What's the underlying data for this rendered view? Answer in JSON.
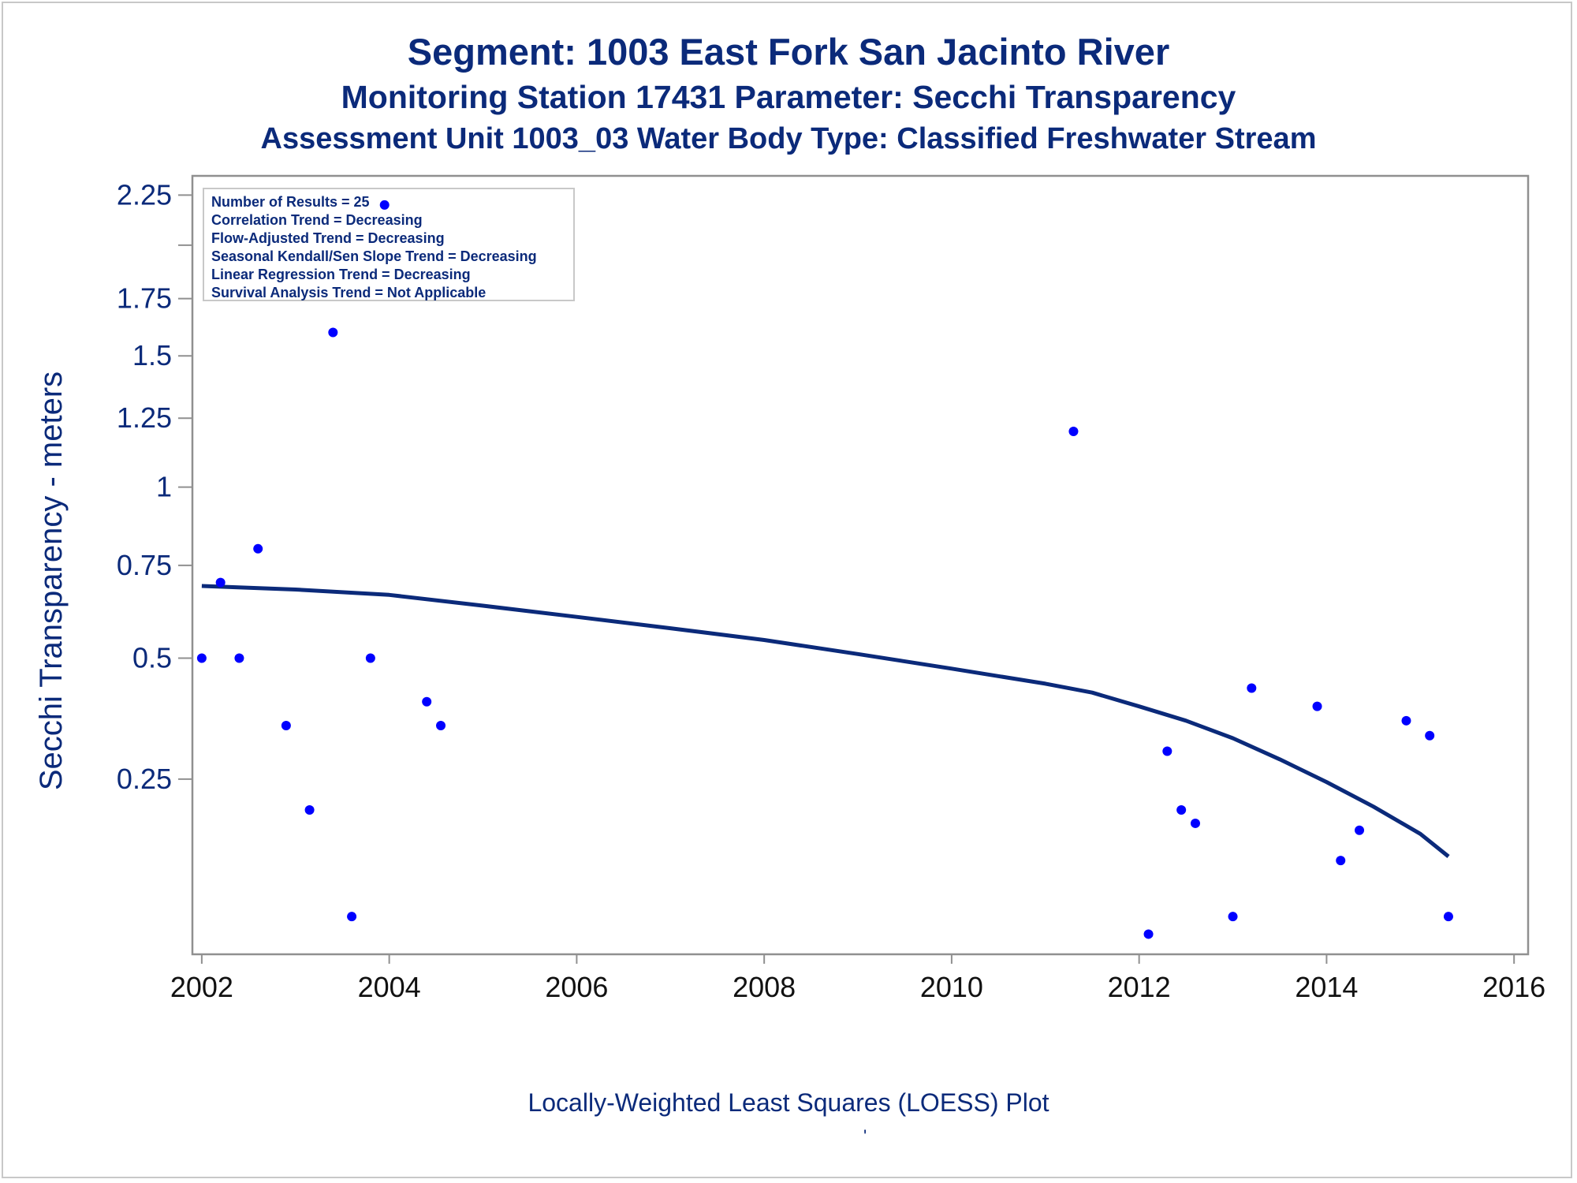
{
  "titles": {
    "line1": "Segment: 1003  East Fork San Jacinto River",
    "line2": "Monitoring Station 17431 Parameter: Secchi Transparency",
    "line3": "Assessment Unit 1003_03   Water Body Type: Classified Freshwater Stream"
  },
  "footnote": "Locally-Weighted Least Squares (LOESS) Plot",
  "footnote_mark": "'",
  "legend": {
    "lines": [
      "Number of Results = 25",
      "Correlation Trend = Decreasing",
      "Flow-Adjusted Trend = Decreasing",
      "Seasonal Kendall/Sen Slope Trend = Decreasing",
      "Linear Regression Trend = Decreasing",
      "Survival Analysis Trend = Not Applicable"
    ]
  },
  "colors": {
    "text": "#0b2a7a",
    "points": "#0000ff",
    "loess": "#0b2a7a",
    "axis": "#909090"
  },
  "chart_data": {
    "type": "scatter",
    "xlabel": "",
    "ylabel": "Secchi Transparency - meters",
    "x_ticks": [
      2002,
      2004,
      2006,
      2008,
      2010,
      2012,
      2014,
      2016
    ],
    "y_ticks": [
      0.25,
      0.5,
      0.75,
      1,
      1.25,
      1.5,
      1.75,
      2.25
    ],
    "y_tick_labels": [
      "0.25",
      "0.5",
      "0.75",
      "1",
      "1.25",
      "1.5",
      "1.75",
      "2.25"
    ],
    "y_scale": "sqrt",
    "xlim": [
      2001.9,
      2016.15
    ],
    "ylim": [
      0.04,
      2.35
    ],
    "grid": false,
    "legend_position": "top-left",
    "points": [
      {
        "x": 2002.0,
        "y": 0.5
      },
      {
        "x": 2002.2,
        "y": 0.7
      },
      {
        "x": 2002.4,
        "y": 0.5
      },
      {
        "x": 2002.6,
        "y": 0.8
      },
      {
        "x": 2002.9,
        "y": 0.35
      },
      {
        "x": 2003.15,
        "y": 0.2
      },
      {
        "x": 2003.4,
        "y": 1.6
      },
      {
        "x": 2003.6,
        "y": 0.07
      },
      {
        "x": 2003.8,
        "y": 0.5
      },
      {
        "x": 2003.95,
        "y": 2.2
      },
      {
        "x": 2004.4,
        "y": 0.4
      },
      {
        "x": 2004.55,
        "y": 0.35
      },
      {
        "x": 2011.3,
        "y": 1.2
      },
      {
        "x": 2012.1,
        "y": 0.055
      },
      {
        "x": 2012.3,
        "y": 0.3
      },
      {
        "x": 2012.45,
        "y": 0.2
      },
      {
        "x": 2012.6,
        "y": 0.18
      },
      {
        "x": 2013.0,
        "y": 0.07
      },
      {
        "x": 2013.2,
        "y": 0.43
      },
      {
        "x": 2013.9,
        "y": 0.39
      },
      {
        "x": 2014.15,
        "y": 0.13
      },
      {
        "x": 2014.35,
        "y": 0.17
      },
      {
        "x": 2014.85,
        "y": 0.36
      },
      {
        "x": 2015.1,
        "y": 0.33
      },
      {
        "x": 2015.3,
        "y": 0.07
      }
    ],
    "loess": {
      "x": [
        2002.0,
        2003.0,
        2004.0,
        2005.0,
        2006.0,
        2007.0,
        2008.0,
        2009.0,
        2010.0,
        2011.0,
        2011.5,
        2012.0,
        2012.5,
        2013.0,
        2013.5,
        2014.0,
        2014.5,
        2015.0,
        2015.3
      ],
      "y": [
        0.69,
        0.68,
        0.665,
        0.635,
        0.605,
        0.575,
        0.545,
        0.51,
        0.475,
        0.44,
        0.42,
        0.39,
        0.36,
        0.325,
        0.285,
        0.245,
        0.205,
        0.165,
        0.135
      ]
    }
  }
}
